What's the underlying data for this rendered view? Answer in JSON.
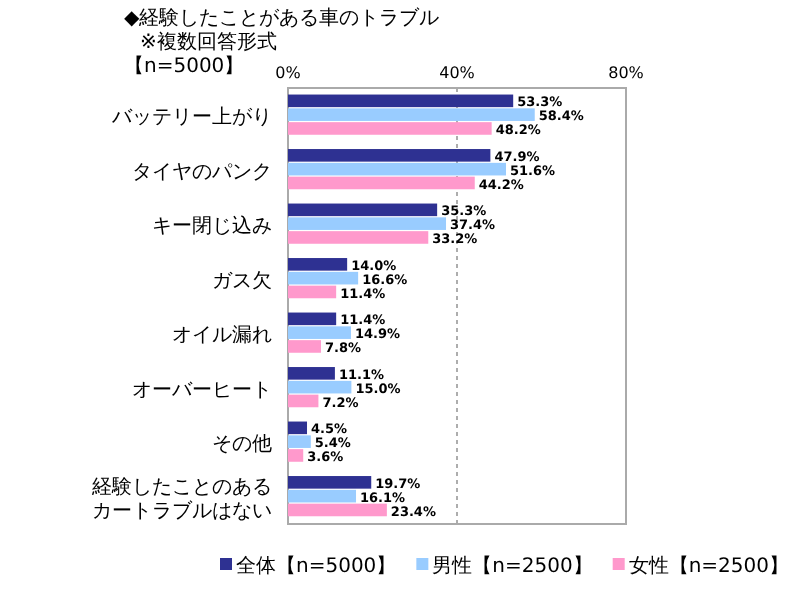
{
  "chart_data": {
    "type": "bar",
    "orientation": "horizontal",
    "title": "◆経験したことがある車のトラブル",
    "subtitle": "※複数回答形式",
    "annotations": [
      "【n=5000】"
    ],
    "categories": [
      "バッテリー上がり",
      "タイヤのパンク",
      "キー閉じ込み",
      "ガス欠",
      "オイル漏れ",
      "オーバーヒート",
      "その他",
      "経験したことのあるカートラブルはない"
    ],
    "series": [
      {
        "name": "全体【n=5000】",
        "color": "#2e3192",
        "values": [
          53.3,
          47.9,
          35.3,
          14.0,
          11.4,
          11.1,
          4.5,
          19.7
        ],
        "value_labels": [
          "53.3%",
          "47.9%",
          "35.3%",
          "14.0%",
          "11.4%",
          "11.1%",
          "4.5%",
          "19.7%"
        ]
      },
      {
        "name": "男性【n=2500】",
        "color": "#99ccff",
        "values": [
          58.4,
          51.6,
          37.4,
          16.6,
          14.9,
          15.0,
          5.4,
          16.1
        ],
        "value_labels": [
          "58.4%",
          "51.6%",
          "37.4%",
          "16.6%",
          "14.9%",
          "15.0%",
          "5.4%",
          "16.1%"
        ]
      },
      {
        "name": "女性【n=2500】",
        "color": "#ff99cc",
        "values": [
          48.2,
          44.2,
          33.2,
          11.4,
          7.8,
          7.2,
          3.6,
          23.4
        ],
        "value_labels": [
          "48.2%",
          "44.2%",
          "33.2%",
          "11.4%",
          "7.8%",
          "7.2%",
          "3.6%",
          "23.4%"
        ]
      }
    ],
    "xlim": [
      0,
      80
    ],
    "xticks": [
      {
        "value": 0,
        "label": "0%"
      },
      {
        "value": 40,
        "label": "40%"
      },
      {
        "value": 80,
        "label": "80%"
      }
    ],
    "grid": "x",
    "legend": "bottom"
  }
}
